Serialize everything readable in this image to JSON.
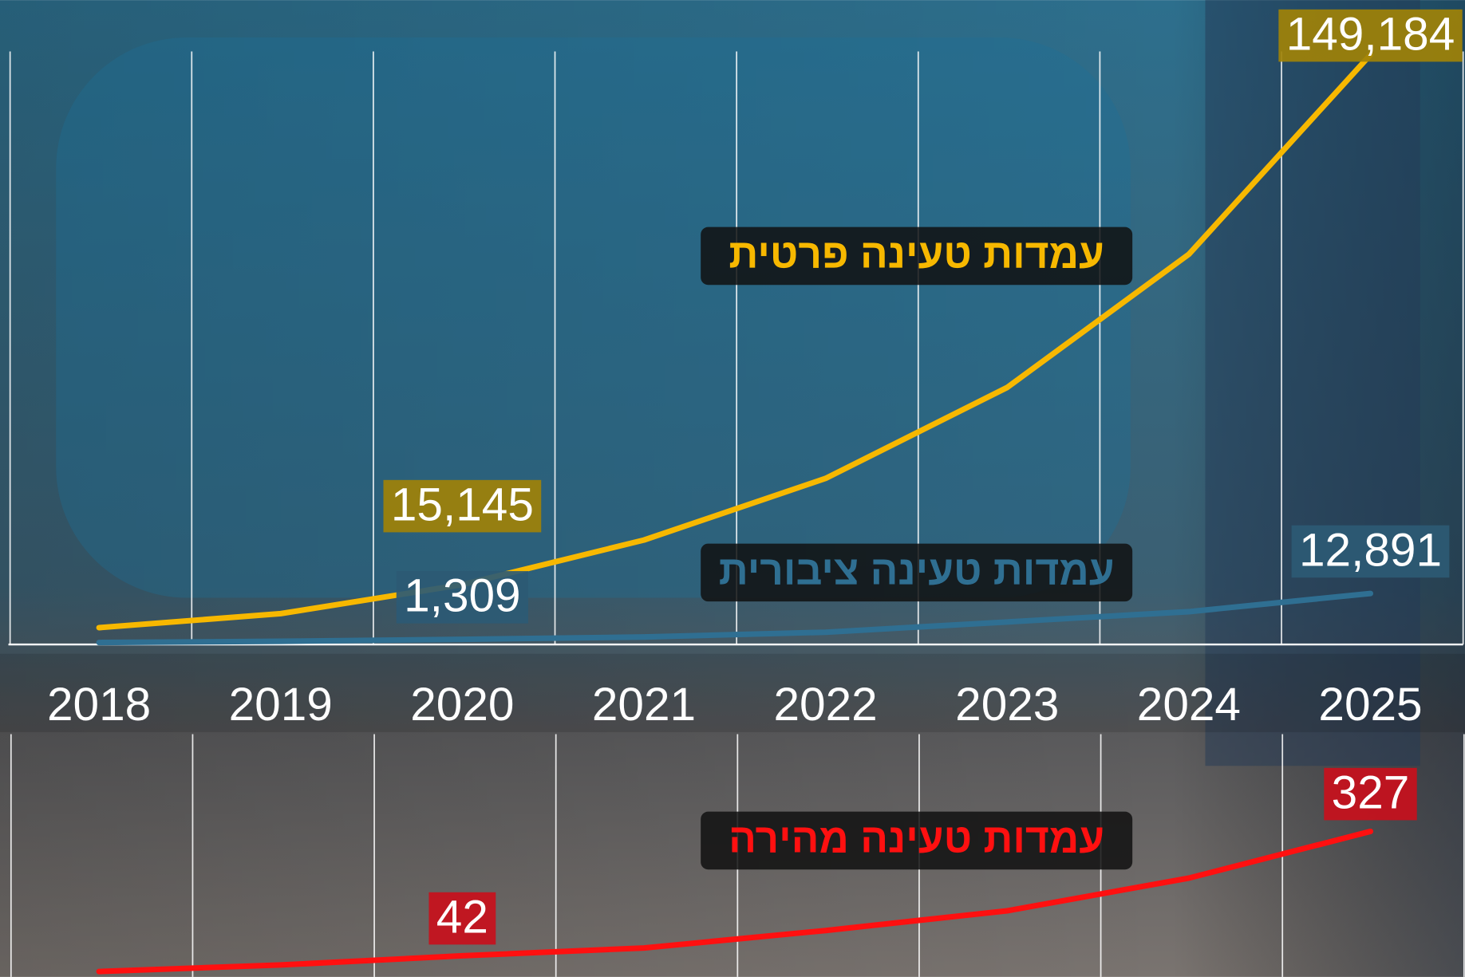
{
  "chart_data": {
    "type": "line",
    "categories": [
      "2018",
      "2019",
      "2020",
      "2021",
      "2022",
      "2023",
      "2024",
      "2025"
    ],
    "ylim": [
      0,
      163000
    ],
    "y2lim": [
      0,
      550
    ],
    "series": [
      {
        "name": "עמדות טעינה פרטית",
        "color": "#f7b800",
        "label_color": "#a08208",
        "values": [
          4250,
          7800,
          15145,
          26400,
          42000,
          65000,
          98700,
          149184
        ],
        "value_labels": [
          null,
          null,
          "15,145",
          null,
          null,
          null,
          null,
          "149,184"
        ]
      },
      {
        "name": "עמדות טעינה ציבורית",
        "color": "#2f6f92",
        "label_color": "#2d5a74",
        "values": [
          500,
          800,
          1309,
          1900,
          3100,
          5700,
          8300,
          12891
        ],
        "value_labels": [
          null,
          null,
          "1,309",
          null,
          null,
          null,
          null,
          "12,891"
        ]
      },
      {
        "name": "עמדות טעינה מהירה",
        "color": "#ff1010",
        "label_color": "#c8101c",
        "axis": "y2",
        "values": [
          6,
          21,
          42,
          60,
          100,
          145,
          220,
          327
        ],
        "value_labels": [
          null,
          null,
          "42",
          null,
          null,
          null,
          null,
          "327"
        ]
      }
    ]
  }
}
